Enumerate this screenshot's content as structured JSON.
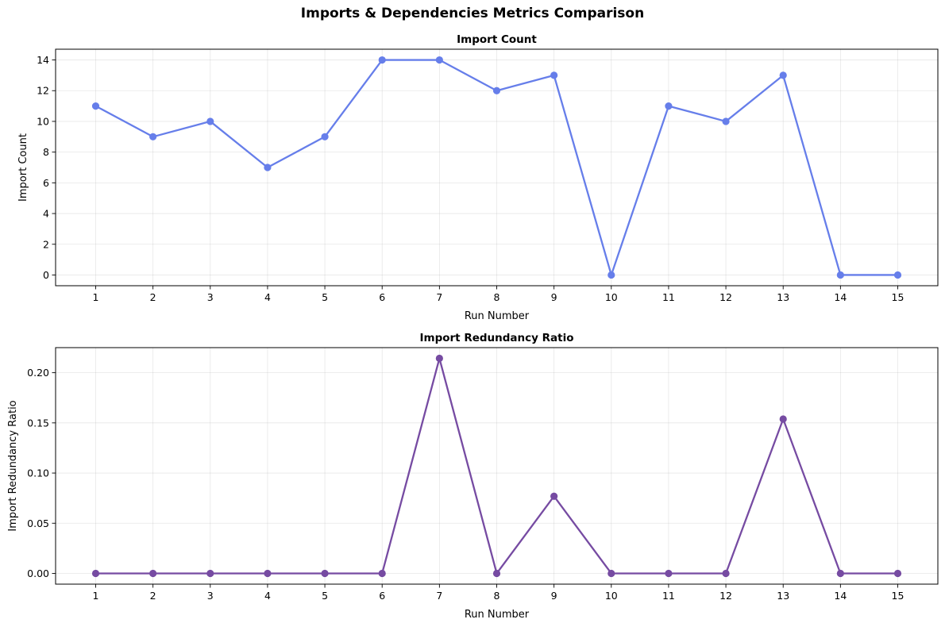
{
  "figure": {
    "title": "Imports & Dependencies Metrics Comparison"
  },
  "chart_data": [
    {
      "type": "line",
      "title": "Import Count",
      "xlabel": "Run Number",
      "ylabel": "Import Count",
      "x": [
        1,
        2,
        3,
        4,
        5,
        6,
        7,
        8,
        9,
        10,
        11,
        12,
        13,
        14,
        15
      ],
      "xticks": [
        "1",
        "2",
        "3",
        "4",
        "5",
        "6",
        "7",
        "8",
        "9",
        "10",
        "11",
        "12",
        "13",
        "14",
        "15"
      ],
      "yticks": [
        "0",
        "2",
        "4",
        "6",
        "8",
        "10",
        "12",
        "14"
      ],
      "ytick_values": [
        0,
        2,
        4,
        6,
        8,
        10,
        12,
        14
      ],
      "xlim": [
        0.3,
        15.7
      ],
      "ylim": [
        -0.7,
        14.7
      ],
      "grid": true,
      "series": [
        {
          "values": [
            11,
            9,
            10,
            7,
            9,
            14,
            14,
            12,
            13,
            0,
            11,
            10,
            13,
            0,
            0
          ],
          "color": "#667eea",
          "marker": "circle"
        }
      ]
    },
    {
      "type": "line",
      "title": "Import Redundancy Ratio",
      "xlabel": "Run Number",
      "ylabel": "Import Redundancy Ratio",
      "x": [
        1,
        2,
        3,
        4,
        5,
        6,
        7,
        8,
        9,
        10,
        11,
        12,
        13,
        14,
        15
      ],
      "xticks": [
        "1",
        "2",
        "3",
        "4",
        "5",
        "6",
        "7",
        "8",
        "9",
        "10",
        "11",
        "12",
        "13",
        "14",
        "15"
      ],
      "yticks": [
        "0.00",
        "0.05",
        "0.10",
        "0.15",
        "0.20"
      ],
      "ytick_values": [
        0,
        0.05,
        0.1,
        0.15,
        0.2
      ],
      "xlim": [
        0.3,
        15.7
      ],
      "ylim": [
        -0.0107,
        0.225
      ],
      "grid": true,
      "series": [
        {
          "values": [
            0,
            0,
            0,
            0,
            0,
            0,
            0.2143,
            0,
            0.0769,
            0,
            0,
            0,
            0.1538,
            0,
            0
          ],
          "color": "#764ba2",
          "marker": "circle"
        }
      ]
    }
  ]
}
